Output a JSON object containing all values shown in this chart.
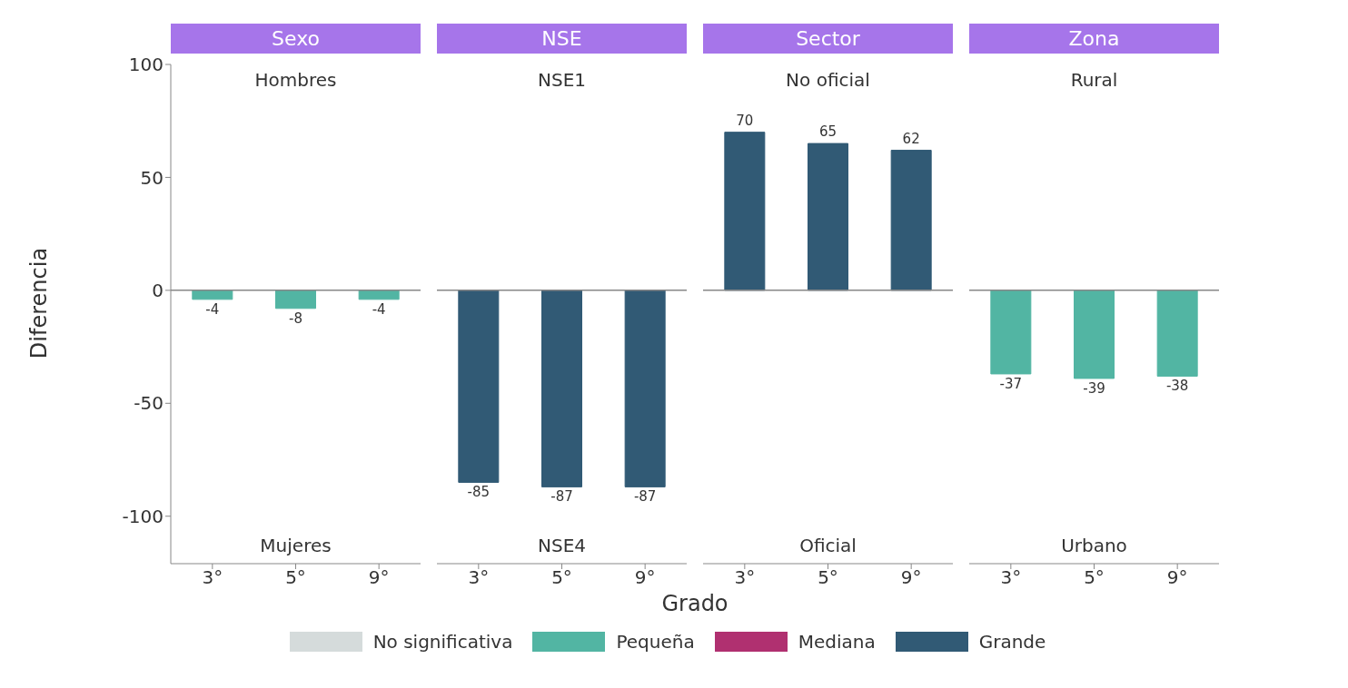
{
  "chart_data": [
    {
      "type": "bar",
      "title": "Sexo",
      "annotations": [
        "Hombres",
        "Mujeres"
      ],
      "ylabel": "Diferencia",
      "categories": [
        "3°",
        "5°",
        "9°"
      ],
      "stacked": true,
      "data_labels": true,
      "legend": "bottom",
      "ylim": [
        -121,
        100
      ],
      "yticks": [
        -100,
        -50,
        0,
        50,
        100
      ],
      "ref_lines": [
        {
          "axis": "y",
          "value": 0,
          "color": "#888888"
        }
      ],
      "series": [
        {
          "name": "No significativa",
          "color": "#d5dbdb",
          "values": [
            null,
            null,
            null
          ]
        },
        {
          "name": "Pequeña",
          "color": "#52b5a3",
          "values": [
            -4,
            -8,
            -4
          ]
        },
        {
          "name": "Mediana",
          "color": "#b03070",
          "values": [
            null,
            null,
            null
          ]
        },
        {
          "name": "Grande",
          "color": "#315a75",
          "values": [
            null,
            null,
            null
          ]
        }
      ]
    },
    {
      "type": "bar",
      "title": "NSE",
      "annotations": [
        "NSE1",
        "NSE4"
      ],
      "xlabel": "Grado",
      "categories": [
        "3°",
        "5°",
        "9°"
      ],
      "stacked": true,
      "data_labels": true,
      "tick_labels": "x",
      "ylim": [
        -121,
        100
      ],
      "ref_lines": [
        {
          "axis": "y",
          "value": 0,
          "color": "#888888"
        }
      ],
      "series": [
        {
          "color": "#d5dbdb",
          "values": [
            null,
            null,
            null
          ]
        },
        {
          "color": "#52b5a3",
          "values": [
            null,
            null,
            null
          ]
        },
        {
          "color": "#b03070",
          "values": [
            null,
            null,
            null
          ]
        },
        {
          "color": "#315a75",
          "values": [
            -85,
            -87,
            -87
          ]
        }
      ]
    },
    {
      "type": "bar",
      "title": "Sector",
      "annotations": [
        "No oficial",
        "Oficial"
      ],
      "categories": [
        "3°",
        "5°",
        "9°"
      ],
      "stacked": true,
      "data_labels": true,
      "tick_labels": "x",
      "ylim": [
        -121,
        100
      ],
      "ref_lines": [
        {
          "axis": "y",
          "value": 0,
          "color": "#888888"
        }
      ],
      "series": [
        {
          "color": "#d5dbdb",
          "values": [
            null,
            null,
            null
          ]
        },
        {
          "color": "#52b5a3",
          "values": [
            null,
            null,
            null
          ]
        },
        {
          "color": "#b03070",
          "values": [
            null,
            null,
            null
          ]
        },
        {
          "color": "#315a75",
          "values": [
            70,
            65,
            62
          ]
        }
      ]
    },
    {
      "type": "bar",
      "title": "Zona",
      "annotations": [
        "Rural",
        "Urbano"
      ],
      "categories": [
        "3°",
        "5°",
        "9°"
      ],
      "stacked": true,
      "data_labels": true,
      "tick_labels": "x",
      "ylim": [
        -121,
        100
      ],
      "ref_lines": [
        {
          "axis": "y",
          "value": 0,
          "color": "#888888"
        }
      ],
      "series": [
        {
          "color": "#d5dbdb",
          "values": [
            null,
            null,
            null
          ]
        },
        {
          "color": "#52b5a3",
          "values": [
            -37,
            -39,
            -38
          ]
        },
        {
          "color": "#b03070",
          "values": [
            null,
            null,
            null
          ]
        },
        {
          "color": "#315a75",
          "values": [
            null,
            null,
            null
          ]
        }
      ]
    }
  ]
}
